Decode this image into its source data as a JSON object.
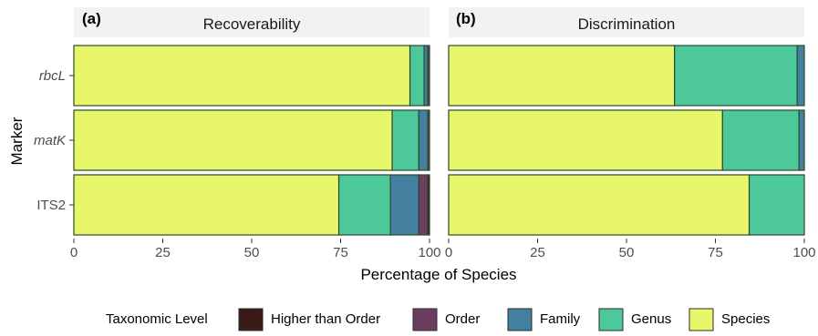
{
  "chart_data": [
    {
      "type": "bar",
      "orientation": "horizontal",
      "stacked": true,
      "panel_tag": "(a)",
      "title": "Recoverability",
      "categories": [
        "rbcL",
        "matK",
        "ITS2"
      ],
      "italic_categories": [
        "rbcL",
        "matK"
      ],
      "series": [
        {
          "name": "Species",
          "color": "#e8f76a",
          "values": [
            94.5,
            89.5,
            74.5
          ]
        },
        {
          "name": "Genus",
          "color": "#4cc89a",
          "values": [
            4.0,
            7.5,
            14.5
          ]
        },
        {
          "name": "Family",
          "color": "#43809f",
          "values": [
            1.0,
            2.5,
            8.0
          ]
        },
        {
          "name": "Order",
          "color": "#6b3d5f",
          "values": [
            0.5,
            0.5,
            2.5
          ]
        },
        {
          "name": "Higher than Order",
          "color": "#3b1a1a",
          "values": [
            0,
            0,
            0.5
          ]
        }
      ],
      "xlim": [
        0,
        100
      ],
      "xticks": [
        "0",
        "25",
        "50",
        "75",
        "100"
      ]
    },
    {
      "type": "bar",
      "orientation": "horizontal",
      "stacked": true,
      "panel_tag": "(b)",
      "title": "Discrimination",
      "categories": [
        "rbcL",
        "matK",
        "ITS2"
      ],
      "italic_categories": [
        "rbcL",
        "matK"
      ],
      "series": [
        {
          "name": "Species",
          "color": "#e8f76a",
          "values": [
            63.5,
            77.0,
            84.5
          ]
        },
        {
          "name": "Genus",
          "color": "#4cc89a",
          "values": [
            34.5,
            21.5,
            15.5
          ]
        },
        {
          "name": "Family",
          "color": "#43809f",
          "values": [
            2.0,
            1.5,
            0
          ]
        },
        {
          "name": "Order",
          "color": "#6b3d5f",
          "values": [
            0,
            0,
            0
          ]
        },
        {
          "name": "Higher than Order",
          "color": "#3b1a1a",
          "values": [
            0,
            0,
            0
          ]
        }
      ],
      "xlim": [
        0,
        100
      ],
      "xticks": [
        "0",
        "25",
        "50",
        "75",
        "100"
      ]
    }
  ],
  "axes": {
    "xlabel": "Percentage of Species",
    "ylabel": "Marker"
  },
  "legend": {
    "title": "Taxonomic Level",
    "placement": "bottom",
    "items": [
      {
        "label": "Higher than Order",
        "color": "#3b1a1a"
      },
      {
        "label": "Order",
        "color": "#6b3d5f"
      },
      {
        "label": "Family",
        "color": "#43809f"
      },
      {
        "label": "Genus",
        "color": "#4cc89a"
      },
      {
        "label": "Species",
        "color": "#e8f76a"
      }
    ]
  }
}
